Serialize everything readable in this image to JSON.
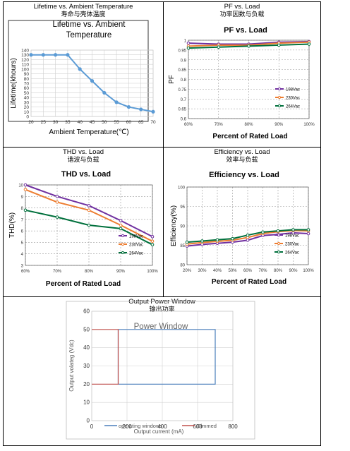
{
  "sections": [
    {
      "title_en": "Lifetime vs. Ambient Temperature",
      "title_zh": "寿命与壳体温度"
    },
    {
      "title_en": "PF vs. Load",
      "title_zh": "功率因数与负载"
    },
    {
      "title_en": "THD vs. Load",
      "title_zh": "谐波与负载"
    },
    {
      "title_en": "Efficiency vs. Load",
      "title_zh": "效率与负载"
    },
    {
      "title_en": "Output Power Window",
      "title_zh": "输出功率"
    }
  ],
  "colors": {
    "lifetime": "#5b9bd5",
    "v198": "#7030a0",
    "v230": "#ed7d31",
    "v264": "#00703c",
    "operating": "#4a7ebb",
    "dimmed": "#c0504d"
  },
  "chart_data": [
    {
      "id": "lifetime",
      "type": "line",
      "title": "Lifetime vs. Ambient Temperature",
      "xlabel": "Ambient Temperature(℃)",
      "ylabel": "Lifetime(khours)",
      "x": [
        20,
        25,
        30,
        35,
        40,
        45,
        50,
        55,
        60,
        65,
        70
      ],
      "series": [
        {
          "values": [
            130,
            130,
            130,
            130,
            100,
            75,
            50,
            30,
            20,
            15,
            10
          ]
        }
      ],
      "xlim": [
        20,
        70
      ],
      "ylim": [
        0,
        140
      ],
      "xticks": [
        "20",
        "25",
        "30",
        "35",
        "40",
        "45",
        "50",
        "55",
        "60",
        "65",
        "70"
      ],
      "yticks": [
        "0",
        "10",
        "20",
        "30",
        "40",
        "50",
        "60",
        "70",
        "80",
        "90",
        "100",
        "110",
        "120",
        "130",
        "140"
      ],
      "grid": true
    },
    {
      "id": "pf",
      "type": "line",
      "title": "PF vs. Load",
      "xlabel": "Percent of Rated Load",
      "ylabel": "PF",
      "x": [
        60,
        70,
        80,
        90,
        100
      ],
      "series": [
        {
          "name": "198Vac",
          "values": [
            0.985,
            0.98,
            0.98,
            0.99,
            0.993
          ]
        },
        {
          "name": "230Vac",
          "values": [
            0.97,
            0.975,
            0.975,
            0.985,
            0.99
          ]
        },
        {
          "name": "264Vac",
          "values": [
            0.96,
            0.965,
            0.97,
            0.975,
            0.98
          ]
        }
      ],
      "xlim": [
        60,
        100
      ],
      "ylim": [
        0.6,
        1.0
      ],
      "xticks": [
        "60%",
        "70%",
        "80%",
        "90%",
        "100%"
      ],
      "yticks": [
        "0.6",
        "0.65",
        "0.7",
        "0.75",
        "0.8",
        "0.85",
        "0.9",
        "0.95",
        "1"
      ],
      "legend": "bottom-right",
      "grid": true
    },
    {
      "id": "thd",
      "type": "line",
      "title": "THD vs. Load",
      "xlabel": "Percent of Rated Load",
      "ylabel": "THD(%)",
      "x": [
        60,
        70,
        80,
        90,
        100
      ],
      "series": [
        {
          "name": "198Vac",
          "values": [
            10,
            9,
            8.2,
            6.9,
            5.5
          ]
        },
        {
          "name": "230Vac",
          "values": [
            9.6,
            8.5,
            7.8,
            6.5,
            5.1
          ]
        },
        {
          "name": "264Vac",
          "values": [
            7.8,
            7.2,
            6.5,
            6.2,
            4.8
          ]
        }
      ],
      "xlim": [
        60,
        100
      ],
      "ylim": [
        3,
        10
      ],
      "xticks": [
        "60%",
        "70%",
        "80%",
        "90%",
        "100%"
      ],
      "yticks": [
        "3",
        "4",
        "5",
        "6",
        "7",
        "8",
        "9",
        "10"
      ],
      "legend": "bottom-right",
      "grid": true
    },
    {
      "id": "efficiency",
      "type": "line",
      "title": "Efficiency vs. Load",
      "xlabel": "Percent of Rated Load",
      "ylabel": "Efficiency(%)",
      "x": [
        20,
        30,
        40,
        50,
        60,
        70,
        80,
        90,
        100
      ],
      "series": [
        {
          "name": "198Vac",
          "values": [
            84.8,
            85.2,
            85.5,
            85.8,
            86.3,
            87.5,
            87.8,
            88.2,
            88.0
          ]
        },
        {
          "name": "230Vac",
          "values": [
            85.3,
            85.7,
            86.0,
            86.3,
            87.0,
            88.0,
            88.5,
            88.8,
            88.7
          ]
        },
        {
          "name": "264Vac",
          "values": [
            85.8,
            86.1,
            86.4,
            86.7,
            87.6,
            88.4,
            88.7,
            89.0,
            89.0
          ]
        }
      ],
      "xlim": [
        20,
        100
      ],
      "ylim": [
        80,
        100
      ],
      "xticks": [
        "20%",
        "30%",
        "40%",
        "50%",
        "60%",
        "70%",
        "80%",
        "90%",
        "100%"
      ],
      "yticks": [
        "80",
        "85",
        "90",
        "95",
        "100"
      ],
      "legend": "bottom-right",
      "grid": true
    },
    {
      "id": "power_window",
      "type": "line",
      "title": "Power Window",
      "xlabel": "Output current (mA)",
      "ylabel": "Output  volateg (Vdc)",
      "series": [
        {
          "name": "operating windows",
          "x": [
            150,
            700,
            700,
            150,
            150
          ],
          "values": [
            50,
            50,
            20,
            20,
            50
          ]
        },
        {
          "name": "Dimmed",
          "x": [
            0,
            150,
            150,
            0
          ],
          "values": [
            50,
            50,
            20,
            20
          ]
        }
      ],
      "xlim": [
        0,
        800
      ],
      "ylim": [
        0,
        60
      ],
      "xticks": [
        "0",
        "200",
        "400",
        "600",
        "800"
      ],
      "yticks": [
        "0",
        "10",
        "20",
        "30",
        "40",
        "50",
        "60"
      ],
      "legend": "bottom",
      "grid": true
    }
  ]
}
